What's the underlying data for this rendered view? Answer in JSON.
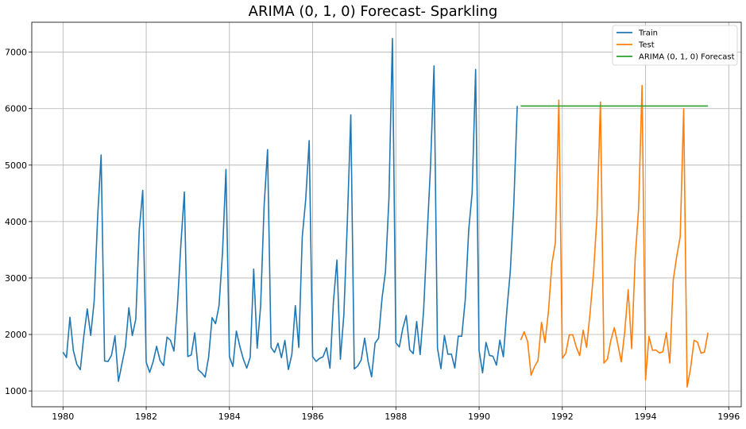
{
  "chart_data": {
    "type": "line",
    "title": "ARIMA (0, 1, 0) Forecast- Sparkling",
    "xlabel": "",
    "ylabel": "",
    "xlim": [
      1979.25,
      1996.3
    ],
    "ylim": [
      720,
      7530
    ],
    "xticks": [
      1980,
      1982,
      1984,
      1986,
      1988,
      1990,
      1992,
      1994,
      1996
    ],
    "yticks": [
      1000,
      2000,
      3000,
      4000,
      5000,
      6000,
      7000
    ],
    "grid": true,
    "legend_position": "top-right",
    "series": [
      {
        "name": "Train",
        "color": "#1f77b4",
        "x_start": 1980.0,
        "x_step": 0.0833333,
        "values": [
          1686,
          1591,
          2304,
          1712,
          1471,
          1377,
          1966,
          2453,
          1984,
          2596,
          4087,
          5179,
          1530,
          1523,
          1633,
          1976,
          1170,
          1480,
          1781,
          2472,
          1981,
          2273,
          3857,
          4551,
          1510,
          1329,
          1518,
          1790,
          1537,
          1449,
          1954,
          1897,
          1706,
          2514,
          3593,
          4524,
          1609,
          1638,
          2030,
          1375,
          1320,
          1245,
          1600,
          2298,
          2191,
          2511,
          3440,
          4923,
          1609,
          1435,
          2061,
          1789,
          1567,
          1404,
          1597,
          3159,
          1759,
          2504,
          4273,
          5274,
          1771,
          1682,
          1846,
          1589,
          1896,
          1379,
          1645,
          2512,
          1771,
          3727,
          4388,
          5434,
          1606,
          1523,
          1577,
          1605,
          1765,
          1403,
          2584,
          3318,
          1562,
          2349,
          3987,
          5891,
          1389,
          1442,
          1548,
          1935,
          1518,
          1250,
          1847,
          1930,
          2638,
          3114,
          4405,
          7242,
          1853,
          1779,
          2108,
          2336,
          1728,
          1661,
          2230,
          1645,
          2421,
          3740,
          4988,
          6757,
          1757,
          1394,
          1982,
          1650,
          1654,
          1406,
          1971,
          1968,
          2608,
          3845,
          4514,
          6694,
          1720,
          1321,
          1859,
          1628,
          1615,
          1457,
          1899,
          1605,
          2424,
          3116,
          4286,
          6047
        ]
      },
      {
        "name": "Test",
        "color": "#ff7f0e",
        "x_start": 1991.0,
        "x_step": 0.0833333,
        "values": [
          1902,
          2049,
          1874,
          1279,
          1432,
          1540,
          2214,
          1857,
          2408,
          3252,
          3627,
          6153,
          1577,
          1667,
          1993,
          1997,
          1783,
          1625,
          2076,
          1773,
          2377,
          3088,
          4096,
          6119,
          1494,
          1564,
          1898,
          2121,
          1831,
          1515,
          2048,
          2795,
          1749,
          3339,
          4227,
          6410,
          1197,
          1968,
          1720,
          1725,
          1674,
          1693,
          2031,
          1495,
          2968,
          3385,
          3729,
          5999,
          1070,
          1402,
          1897,
          1862,
          1670,
          1688,
          2031
        ]
      },
      {
        "name": "ARIMA (0, 1, 0) Forecast",
        "color": "#2ca02c",
        "x_start": 1991.0,
        "x_step": 0.0833333,
        "values": [
          6047,
          6047,
          6047,
          6047,
          6047,
          6047,
          6047,
          6047,
          6047,
          6047,
          6047,
          6047,
          6047,
          6047,
          6047,
          6047,
          6047,
          6047,
          6047,
          6047,
          6047,
          6047,
          6047,
          6047,
          6047,
          6047,
          6047,
          6047,
          6047,
          6047,
          6047,
          6047,
          6047,
          6047,
          6047,
          6047,
          6047,
          6047,
          6047,
          6047,
          6047,
          6047,
          6047,
          6047,
          6047,
          6047,
          6047,
          6047,
          6047,
          6047,
          6047,
          6047,
          6047,
          6047,
          6047
        ]
      }
    ]
  }
}
